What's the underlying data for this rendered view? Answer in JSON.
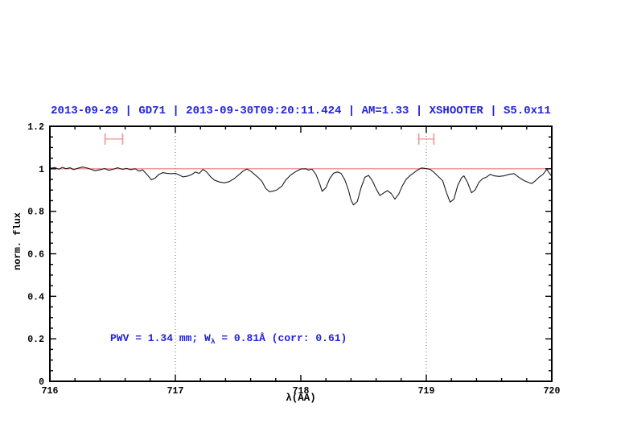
{
  "page": {
    "background": "#ffffff"
  },
  "colors": {
    "title_blue": "#2222dd",
    "annotation_blue": "#2222dd",
    "reference_red": "#f07575",
    "marker_red": "#f09595",
    "curve_black": "#1c1c1c",
    "guideline_gray": "#666666",
    "axis_black": "#000000"
  },
  "annotation": {
    "prefix": "PWV = 1.34 mm; W",
    "sub": "λ",
    "suffix": " = 0.81Å (corr: 0.61)"
  },
  "chart_data": {
    "type": "line",
    "title": "2013-09-29 | GD71 | 2013-09-30T09:20:11.424 | AM=1.33 | XSHOOTER | S5.0x11",
    "xlabel": "λ(AA)",
    "ylabel": "norm. flux",
    "xlim": [
      716,
      720
    ],
    "ylim": [
      0,
      1.2
    ],
    "grid": "off",
    "legend": "none",
    "xticks": {
      "major": [
        716,
        717,
        718,
        719,
        720
      ],
      "labels": [
        "716",
        "717",
        "718",
        "719",
        "720"
      ],
      "minor_step": 0.2
    },
    "yticks": {
      "major": [
        0,
        0.2,
        0.4,
        0.6,
        0.8,
        1,
        1.2
      ],
      "labels": [
        "0",
        "0.2",
        "0.4",
        "0.6",
        "0.8",
        "1",
        "1.2"
      ],
      "minor_step": 0.05
    },
    "dotted_vlines": [
      717,
      719
    ],
    "reference_line": {
      "y": 1.0
    },
    "range_markers": [
      {
        "x1": 716.44,
        "x2": 716.58,
        "y": 1.14
      },
      {
        "x1": 718.94,
        "x2": 719.06,
        "y": 1.14
      }
    ],
    "series": [
      {
        "name": "normalized-spectrum",
        "points": [
          [
            716.0,
            1.002
          ],
          [
            716.04,
            1.006
          ],
          [
            716.07,
            0.998
          ],
          [
            716.1,
            1.007
          ],
          [
            716.13,
            1.0
          ],
          [
            716.16,
            1.005
          ],
          [
            716.19,
            0.996
          ],
          [
            716.23,
            1.004
          ],
          [
            716.26,
            1.008
          ],
          [
            716.3,
            1.003
          ],
          [
            716.33,
            0.997
          ],
          [
            716.36,
            0.991
          ],
          [
            716.4,
            0.996
          ],
          [
            716.44,
            1.001
          ],
          [
            716.47,
            0.993
          ],
          [
            716.51,
            0.999
          ],
          [
            716.54,
            1.005
          ],
          [
            716.58,
            0.997
          ],
          [
            716.61,
            1.002
          ],
          [
            716.64,
            0.996
          ],
          [
            716.68,
            1.0
          ],
          [
            716.71,
            0.989
          ],
          [
            716.74,
            0.995
          ],
          [
            716.77,
            0.976
          ],
          [
            716.81,
            0.948
          ],
          [
            716.84,
            0.957
          ],
          [
            716.87,
            0.974
          ],
          [
            716.9,
            0.982
          ],
          [
            716.93,
            0.979
          ],
          [
            716.97,
            0.977
          ],
          [
            717.0,
            0.979
          ],
          [
            717.03,
            0.971
          ],
          [
            717.06,
            0.962
          ],
          [
            717.1,
            0.966
          ],
          [
            717.13,
            0.973
          ],
          [
            717.16,
            0.985
          ],
          [
            717.19,
            0.978
          ],
          [
            717.22,
            0.997
          ],
          [
            717.25,
            0.985
          ],
          [
            717.28,
            0.963
          ],
          [
            717.31,
            0.947
          ],
          [
            717.35,
            0.938
          ],
          [
            717.39,
            0.934
          ],
          [
            717.43,
            0.94
          ],
          [
            717.47,
            0.954
          ],
          [
            717.51,
            0.974
          ],
          [
            717.54,
            0.989
          ],
          [
            717.57,
            0.999
          ],
          [
            717.6,
            0.989
          ],
          [
            717.63,
            0.974
          ],
          [
            717.66,
            0.959
          ],
          [
            717.69,
            0.941
          ],
          [
            717.72,
            0.908
          ],
          [
            717.75,
            0.892
          ],
          [
            717.78,
            0.895
          ],
          [
            717.81,
            0.901
          ],
          [
            717.85,
            0.919
          ],
          [
            717.88,
            0.948
          ],
          [
            717.92,
            0.971
          ],
          [
            717.96,
            0.987
          ],
          [
            718.0,
            0.999
          ],
          [
            718.04,
            1.0
          ],
          [
            718.06,
            0.994
          ],
          [
            718.09,
            0.998
          ],
          [
            718.12,
            0.974
          ],
          [
            718.15,
            0.93
          ],
          [
            718.17,
            0.894
          ],
          [
            718.2,
            0.911
          ],
          [
            718.23,
            0.954
          ],
          [
            718.26,
            0.979
          ],
          [
            718.29,
            0.985
          ],
          [
            718.32,
            0.979
          ],
          [
            718.35,
            0.949
          ],
          [
            718.38,
            0.899
          ],
          [
            718.4,
            0.853
          ],
          [
            718.42,
            0.83
          ],
          [
            718.45,
            0.846
          ],
          [
            718.48,
            0.911
          ],
          [
            718.51,
            0.96
          ],
          [
            718.54,
            0.969
          ],
          [
            718.57,
            0.944
          ],
          [
            718.6,
            0.906
          ],
          [
            718.63,
            0.874
          ],
          [
            718.66,
            0.886
          ],
          [
            718.69,
            0.897
          ],
          [
            718.72,
            0.884
          ],
          [
            718.75,
            0.857
          ],
          [
            718.78,
            0.881
          ],
          [
            718.81,
            0.921
          ],
          [
            718.84,
            0.951
          ],
          [
            718.87,
            0.968
          ],
          [
            718.9,
            0.981
          ],
          [
            718.93,
            0.994
          ],
          [
            718.96,
            1.004
          ],
          [
            719.0,
            1.001
          ],
          [
            719.03,
            0.997
          ],
          [
            719.06,
            0.984
          ],
          [
            719.09,
            0.967
          ],
          [
            719.13,
            0.944
          ],
          [
            719.16,
            0.889
          ],
          [
            719.19,
            0.843
          ],
          [
            719.22,
            0.857
          ],
          [
            719.25,
            0.921
          ],
          [
            719.28,
            0.957
          ],
          [
            719.3,
            0.967
          ],
          [
            719.33,
            0.934
          ],
          [
            719.36,
            0.887
          ],
          [
            719.39,
            0.901
          ],
          [
            719.42,
            0.937
          ],
          [
            719.45,
            0.954
          ],
          [
            719.48,
            0.961
          ],
          [
            719.51,
            0.974
          ],
          [
            719.54,
            0.967
          ],
          [
            719.58,
            0.964
          ],
          [
            719.62,
            0.967
          ],
          [
            719.66,
            0.974
          ],
          [
            719.7,
            0.977
          ],
          [
            719.74,
            0.959
          ],
          [
            719.78,
            0.944
          ],
          [
            719.81,
            0.937
          ],
          [
            719.84,
            0.93
          ],
          [
            719.87,
            0.944
          ],
          [
            719.9,
            0.961
          ],
          [
            719.93,
            0.974
          ],
          [
            719.96,
            0.997
          ],
          [
            719.99,
            0.972
          ],
          [
            720.0,
            0.963
          ]
        ]
      }
    ]
  }
}
